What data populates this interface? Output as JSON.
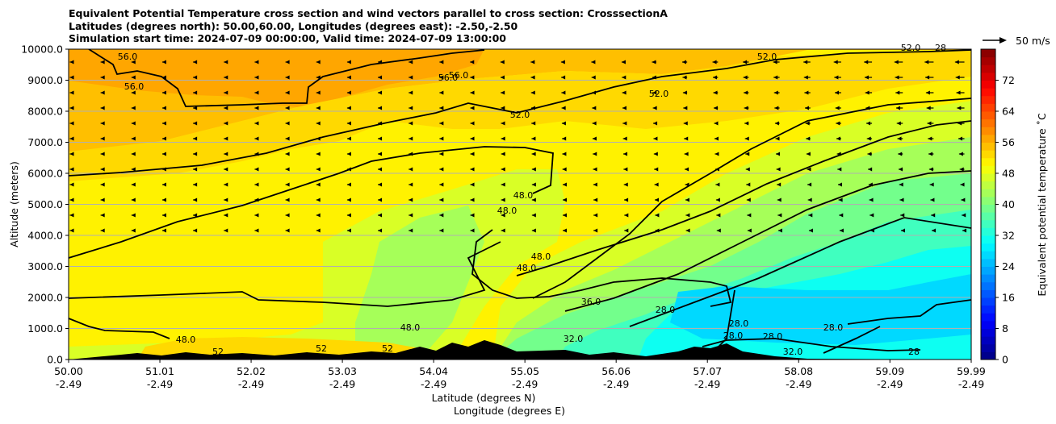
{
  "chart_data": {
    "type": "heatmap",
    "title_lines": [
      "Equivalent Potential Temperature cross section and wind vectors parallel to cross section: CrosssectionA",
      "Latitudes (degrees north): 50.00,60.00, Longitudes (degrees east): -2.50,-2.50",
      "Simulation start time: 2024-07-09 00:00:00, Valid time: 2024-07-09 13:00:00"
    ],
    "ylabel": "Altitude (meters)",
    "xlabel_line1": "Latitude (degrees N)",
    "xlabel_line2": "Longitude (degrees E)",
    "ylim": [
      0,
      10000
    ],
    "yticks": [
      "0.0",
      "1000.0",
      "2000.0",
      "3000.0",
      "4000.0",
      "5000.0",
      "6000.0",
      "7000.0",
      "8000.0",
      "9000.0",
      "10000.0"
    ],
    "xlim": [
      50.0,
      59.99
    ],
    "xticks": [
      {
        "lat": "50.00",
        "lon": "-2.49"
      },
      {
        "lat": "51.01",
        "lon": "-2.49"
      },
      {
        "lat": "52.02",
        "lon": "-2.49"
      },
      {
        "lat": "53.03",
        "lon": "-2.49"
      },
      {
        "lat": "54.04",
        "lon": "-2.49"
      },
      {
        "lat": "55.05",
        "lon": "-2.49"
      },
      {
        "lat": "56.06",
        "lon": "-2.49"
      },
      {
        "lat": "57.07",
        "lon": "-2.49"
      },
      {
        "lat": "58.08",
        "lon": "-2.49"
      },
      {
        "lat": "59.09",
        "lon": "-2.49"
      },
      {
        "lat": "59.99",
        "lon": "-2.49"
      }
    ],
    "colorbar": {
      "label": "Equivalent potential temperature ˚C",
      "range": [
        0,
        80
      ],
      "ticks": [
        "0",
        "8",
        "16",
        "24",
        "32",
        "40",
        "48",
        "56",
        "64",
        "72"
      ]
    },
    "wind_key": "50 m/s",
    "contour_labels": [
      "56.0",
      "56.0",
      "56.0",
      "56.0",
      "52.0",
      "52.0",
      "52.0",
      "52.0",
      "48.0",
      "48.0",
      "48.0",
      "48.0",
      "48.0",
      "48.0",
      "52",
      "52",
      "52",
      "36.0",
      "32.0",
      "32.0",
      "28.0",
      "28.0",
      "28.0",
      "28.0",
      "28.0",
      "28",
      "28"
    ],
    "grid": true
  }
}
